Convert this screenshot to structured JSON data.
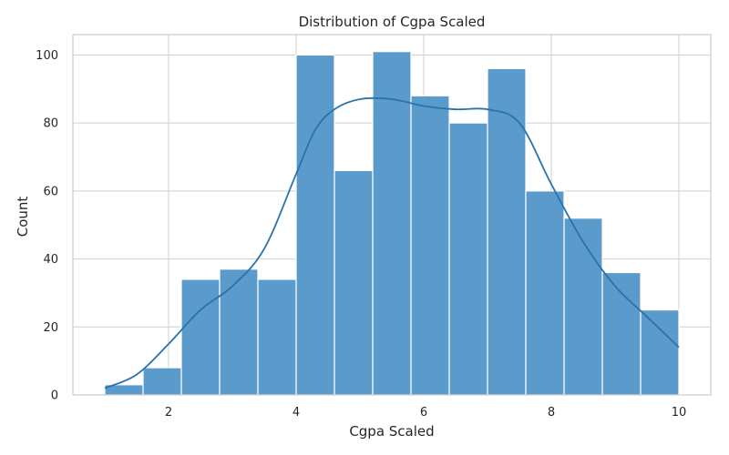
{
  "chart_data": {
    "type": "bar",
    "subtype": "histogram",
    "title": "Distribution of Cgpa Scaled",
    "xlabel": "Cgpa Scaled",
    "ylabel": "Count",
    "bin_edges": [
      1.0,
      1.6,
      2.2,
      2.8,
      3.4,
      4.0,
      4.6,
      5.2,
      5.8,
      6.4,
      7.0,
      7.6,
      8.2,
      8.8,
      9.4,
      10.0
    ],
    "values": [
      3,
      8,
      34,
      37,
      34,
      100,
      66,
      101,
      88,
      80,
      96,
      60,
      52,
      36,
      25
    ],
    "kde": {
      "x": [
        1.0,
        1.5,
        2.0,
        2.5,
        3.0,
        3.5,
        4.0,
        4.3,
        4.6,
        5.0,
        5.5,
        6.0,
        6.5,
        7.0,
        7.5,
        8.0,
        8.5,
        9.0,
        9.5,
        10.0
      ],
      "y": [
        2,
        6,
        15,
        25,
        32,
        43,
        65,
        78,
        84,
        87,
        87,
        85,
        84,
        84,
        80,
        62,
        45,
        32,
        23,
        14
      ]
    },
    "xlim": [
      0.5,
      10.5
    ],
    "ylim": [
      0,
      106
    ],
    "xticks": [
      2,
      4,
      6,
      8,
      10
    ],
    "yticks": [
      0,
      20,
      40,
      60,
      80,
      100
    ],
    "grid": true,
    "colors": {
      "bar_fill": "#5b9bcb",
      "bar_edge": "#ffffff",
      "kde_line": "#2a72ad",
      "grid": "#cfcfcf",
      "spine": "#cccccc"
    }
  }
}
